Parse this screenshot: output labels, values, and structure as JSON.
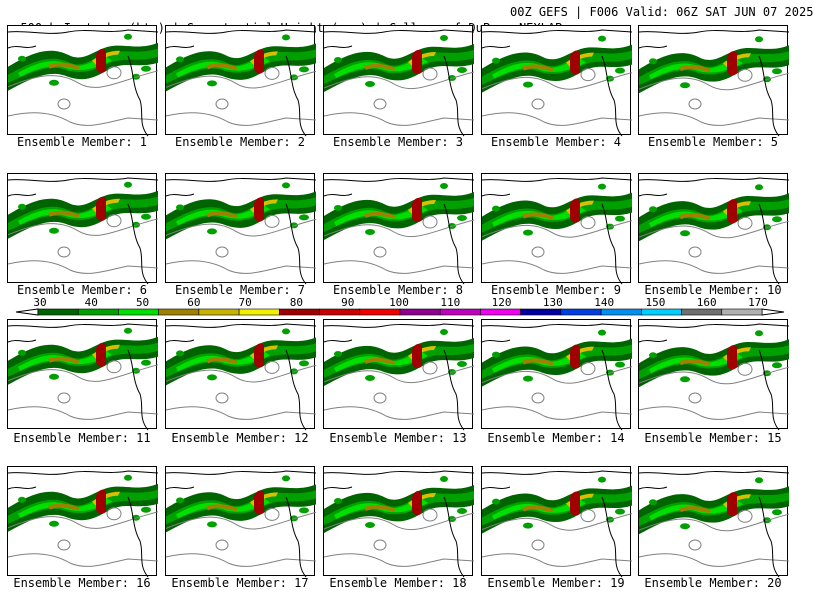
{
  "header": {
    "title_left": "500mb Isotachs (kts) | Geopotential Height (gpm) | College of DuPage NEXLAB",
    "title_right": "00Z GEFS | F006 Valid: 06Z SAT JUN 07 2025"
  },
  "panels": [
    {
      "label": "Ensemble Member: 1"
    },
    {
      "label": "Ensemble Member: 2"
    },
    {
      "label": "Ensemble Member: 3"
    },
    {
      "label": "Ensemble Member: 4"
    },
    {
      "label": "Ensemble Member: 5"
    },
    {
      "label": "Ensemble Member: 6"
    },
    {
      "label": "Ensemble Member: 7"
    },
    {
      "label": "Ensemble Member: 8"
    },
    {
      "label": "Ensemble Member: 9"
    },
    {
      "label": "Ensemble Member: 10"
    },
    {
      "label": "Ensemble Member: 11"
    },
    {
      "label": "Ensemble Member: 12"
    },
    {
      "label": "Ensemble Member: 13"
    },
    {
      "label": "Ensemble Member: 14"
    },
    {
      "label": "Ensemble Member: 15"
    },
    {
      "label": "Ensemble Member: 16"
    },
    {
      "label": "Ensemble Member: 17"
    },
    {
      "label": "Ensemble Member: 18"
    },
    {
      "label": "Ensemble Member: 19"
    },
    {
      "label": "Ensemble Member: 20"
    }
  ],
  "colorbar": {
    "labels": [
      "30",
      "40",
      "50",
      "60",
      "70",
      "80",
      "90",
      "100",
      "110",
      "120",
      "130",
      "140",
      "150",
      "160",
      "170"
    ],
    "colors": [
      "#006400",
      "#00a000",
      "#00e000",
      "#a08000",
      "#c8b400",
      "#f0f000",
      "#a00000",
      "#c80000",
      "#f00000",
      "#900090",
      "#c000c0",
      "#f000f0",
      "#0000a0",
      "#0040e0",
      "#0090f0",
      "#00d0ff",
      "#707070",
      "#b0b0b0"
    ]
  },
  "map_colors": {
    "iso_dark": "#006400",
    "iso_mid": "#00a000",
    "iso_light": "#00e000",
    "iso_olive": "#a08000",
    "iso_yellow": "#d8c000",
    "iso_red": "#a00000",
    "height_contour": "#808080",
    "coastline": "#000000"
  }
}
